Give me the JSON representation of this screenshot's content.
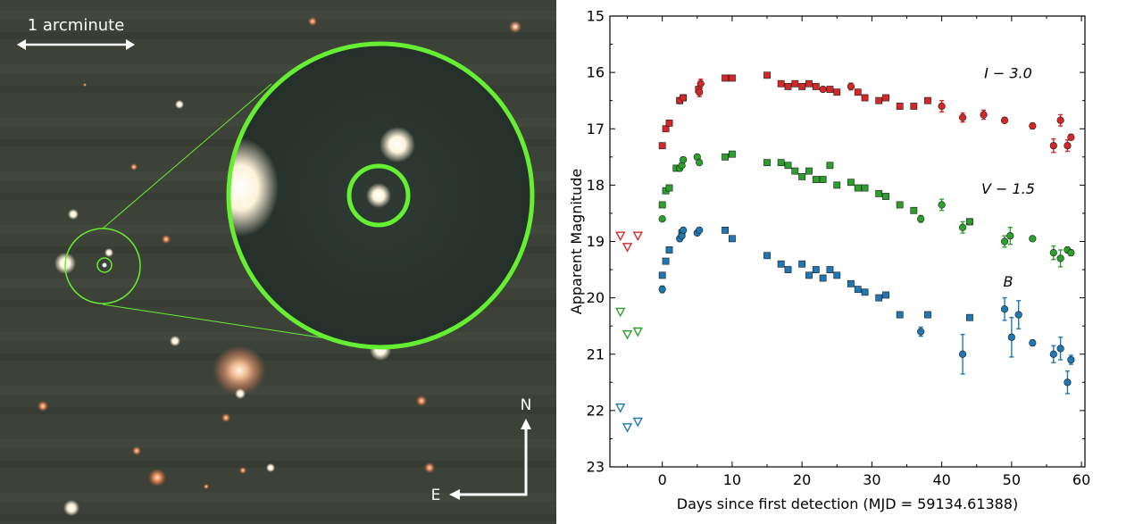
{
  "image": {
    "scale_label": "1 arcminute",
    "compass_north": "N",
    "compass_east": "E",
    "bg_color": "#3c4137",
    "marker_color": "#66ee33"
  },
  "chart_data": {
    "type": "scatter",
    "xlabel": "Days since first detection (MJD = 59134.61388)",
    "ylabel": "Apparent Magnitude",
    "xlim": [
      -7.5,
      60.5
    ],
    "ylim": [
      23,
      15
    ],
    "y_inverted": true,
    "xticks": [
      0,
      10,
      20,
      30,
      40,
      50,
      60
    ],
    "yticks": [
      15,
      16,
      17,
      18,
      19,
      20,
      21,
      22,
      23
    ],
    "marker_note": "squares and circles = detections (two instruments), open downward triangles = upper limits",
    "series": [
      {
        "name": "I − 3.0",
        "color": "#d62728",
        "upper_limits": [
          {
            "x": -6.0,
            "y": 18.9
          },
          {
            "x": -5.0,
            "y": 19.1
          },
          {
            "x": -3.5,
            "y": 18.9
          }
        ],
        "squares": [
          {
            "x": 0.0,
            "y": 17.3
          },
          {
            "x": 0.5,
            "y": 17.0
          },
          {
            "x": 1.0,
            "y": 16.9
          },
          {
            "x": 2.5,
            "y": 16.5
          },
          {
            "x": 3.0,
            "y": 16.45
          },
          {
            "x": 5.2,
            "y": 16.3
          },
          {
            "x": 9.0,
            "y": 16.1
          },
          {
            "x": 10.0,
            "y": 16.1
          },
          {
            "x": 15.0,
            "y": 16.05
          },
          {
            "x": 17.0,
            "y": 16.2
          },
          {
            "x": 18.0,
            "y": 16.25
          },
          {
            "x": 19.0,
            "y": 16.2
          },
          {
            "x": 20.0,
            "y": 16.25
          },
          {
            "x": 21.0,
            "y": 16.2
          },
          {
            "x": 22.0,
            "y": 16.25
          },
          {
            "x": 24.0,
            "y": 16.3
          },
          {
            "x": 25.0,
            "y": 16.35
          },
          {
            "x": 28.0,
            "y": 16.35
          },
          {
            "x": 29.0,
            "y": 16.45
          },
          {
            "x": 31.0,
            "y": 16.5
          },
          {
            "x": 32.0,
            "y": 16.45
          },
          {
            "x": 34.0,
            "y": 16.6
          },
          {
            "x": 36.0,
            "y": 16.6
          },
          {
            "x": 38.0,
            "y": 16.5
          }
        ],
        "circles": [
          {
            "x": 2.5,
            "y": 16.5,
            "err": 0.0
          },
          {
            "x": 3.0,
            "y": 16.45,
            "err": 0.0
          },
          {
            "x": 5.3,
            "y": 16.35,
            "err": 0.08
          },
          {
            "x": 5.5,
            "y": 16.2,
            "err": 0.08
          },
          {
            "x": 23.0,
            "y": 16.3,
            "err": 0.0
          },
          {
            "x": 27.0,
            "y": 16.25,
            "err": 0.06
          },
          {
            "x": 40.0,
            "y": 16.6,
            "err": 0.1
          },
          {
            "x": 43.0,
            "y": 16.8,
            "err": 0.08
          },
          {
            "x": 46.0,
            "y": 16.75,
            "err": 0.08
          },
          {
            "x": 49.0,
            "y": 16.85,
            "err": 0.05
          },
          {
            "x": 53.0,
            "y": 16.95,
            "err": 0.05
          },
          {
            "x": 56.0,
            "y": 17.3,
            "err": 0.12
          },
          {
            "x": 57.0,
            "y": 16.85,
            "err": 0.1
          },
          {
            "x": 58.0,
            "y": 17.3,
            "err": 0.1
          },
          {
            "x": 58.5,
            "y": 17.15,
            "err": 0.05
          }
        ]
      },
      {
        "name": "V − 1.5",
        "color": "#2ca02c",
        "upper_limits": [
          {
            "x": -6.0,
            "y": 20.25
          },
          {
            "x": -5.0,
            "y": 20.65
          },
          {
            "x": -3.5,
            "y": 20.6
          }
        ],
        "squares": [
          {
            "x": 0.0,
            "y": 18.35
          },
          {
            "x": 0.5,
            "y": 18.1
          },
          {
            "x": 1.0,
            "y": 18.05
          },
          {
            "x": 2.0,
            "y": 17.7
          },
          {
            "x": 9.0,
            "y": 17.5
          },
          {
            "x": 10.0,
            "y": 17.45
          },
          {
            "x": 15.0,
            "y": 17.6
          },
          {
            "x": 17.0,
            "y": 17.6
          },
          {
            "x": 18.0,
            "y": 17.65
          },
          {
            "x": 19.0,
            "y": 17.75
          },
          {
            "x": 20.0,
            "y": 17.85
          },
          {
            "x": 21.0,
            "y": 17.75
          },
          {
            "x": 22.0,
            "y": 17.9
          },
          {
            "x": 23.0,
            "y": 17.9
          },
          {
            "x": 24.0,
            "y": 17.65
          },
          {
            "x": 25.0,
            "y": 18.0
          },
          {
            "x": 27.0,
            "y": 17.95
          },
          {
            "x": 28.0,
            "y": 18.05
          },
          {
            "x": 29.0,
            "y": 18.05
          },
          {
            "x": 31.0,
            "y": 18.15
          },
          {
            "x": 32.0,
            "y": 18.2
          },
          {
            "x": 34.0,
            "y": 18.35
          },
          {
            "x": 36.0,
            "y": 18.45
          },
          {
            "x": 44.0,
            "y": 18.65
          }
        ],
        "circles": [
          {
            "x": 0.0,
            "y": 18.6,
            "err": 0.03
          },
          {
            "x": 2.5,
            "y": 17.7,
            "err": 0.05
          },
          {
            "x": 2.8,
            "y": 17.65,
            "err": 0.0
          },
          {
            "x": 3.0,
            "y": 17.55,
            "err": 0.0
          },
          {
            "x": 5.0,
            "y": 17.5,
            "err": 0.0
          },
          {
            "x": 5.3,
            "y": 17.6,
            "err": 0.0
          },
          {
            "x": 37.0,
            "y": 18.6,
            "err": 0.06
          },
          {
            "x": 40.0,
            "y": 18.35,
            "err": 0.1
          },
          {
            "x": 43.0,
            "y": 18.75,
            "err": 0.1
          },
          {
            "x": 44.0,
            "y": 18.65,
            "err": 0.0
          },
          {
            "x": 49.0,
            "y": 19.0,
            "err": 0.1
          },
          {
            "x": 49.8,
            "y": 18.9,
            "err": 0.15
          },
          {
            "x": 53.0,
            "y": 18.95,
            "err": 0.0
          },
          {
            "x": 56.0,
            "y": 19.2,
            "err": 0.12
          },
          {
            "x": 57.0,
            "y": 19.3,
            "err": 0.15
          },
          {
            "x": 58.0,
            "y": 19.15,
            "err": 0.05
          },
          {
            "x": 58.5,
            "y": 19.2,
            "err": 0.05
          }
        ]
      },
      {
        "name": "B",
        "color": "#1f77b4",
        "upper_limits": [
          {
            "x": -6.0,
            "y": 21.95
          },
          {
            "x": -5.0,
            "y": 22.3
          },
          {
            "x": -3.5,
            "y": 22.2
          }
        ],
        "squares": [
          {
            "x": 0.0,
            "y": 19.6
          },
          {
            "x": 0.5,
            "y": 19.35
          },
          {
            "x": 1.0,
            "y": 19.15
          },
          {
            "x": 2.8,
            "y": 18.85
          },
          {
            "x": 9.0,
            "y": 18.8
          },
          {
            "x": 10.0,
            "y": 18.95
          },
          {
            "x": 15.0,
            "y": 19.25
          },
          {
            "x": 17.0,
            "y": 19.4
          },
          {
            "x": 18.0,
            "y": 19.5
          },
          {
            "x": 20.0,
            "y": 19.4
          },
          {
            "x": 21.0,
            "y": 19.6
          },
          {
            "x": 22.0,
            "y": 19.5
          },
          {
            "x": 23.0,
            "y": 19.65
          },
          {
            "x": 24.0,
            "y": 19.5
          },
          {
            "x": 25.0,
            "y": 19.6
          },
          {
            "x": 27.0,
            "y": 19.75
          },
          {
            "x": 28.0,
            "y": 19.85
          },
          {
            "x": 29.0,
            "y": 19.9
          },
          {
            "x": 31.0,
            "y": 20.0
          },
          {
            "x": 32.0,
            "y": 19.95
          },
          {
            "x": 34.0,
            "y": 20.3
          },
          {
            "x": 38.0,
            "y": 20.3
          },
          {
            "x": 44.0,
            "y": 20.35
          }
        ],
        "circles": [
          {
            "x": 0.0,
            "y": 19.85,
            "err": 0.06
          },
          {
            "x": 2.5,
            "y": 18.95,
            "err": 0.05
          },
          {
            "x": 2.8,
            "y": 18.9,
            "err": 0.0
          },
          {
            "x": 3.0,
            "y": 18.8,
            "err": 0.0
          },
          {
            "x": 5.0,
            "y": 18.85,
            "err": 0.0
          },
          {
            "x": 5.3,
            "y": 18.8,
            "err": 0.0
          },
          {
            "x": 37.0,
            "y": 20.6,
            "err": 0.08
          },
          {
            "x": 43.0,
            "y": 21.0,
            "err": 0.35
          },
          {
            "x": 49.0,
            "y": 20.2,
            "err": 0.2
          },
          {
            "x": 50.0,
            "y": 20.7,
            "err": 0.35
          },
          {
            "x": 51.0,
            "y": 20.3,
            "err": 0.25
          },
          {
            "x": 53.0,
            "y": 20.8,
            "err": 0.05
          },
          {
            "x": 56.0,
            "y": 21.0,
            "err": 0.15
          },
          {
            "x": 57.0,
            "y": 20.9,
            "err": 0.2
          },
          {
            "x": 58.0,
            "y": 21.5,
            "err": 0.2
          },
          {
            "x": 58.5,
            "y": 21.1,
            "err": 0.08
          }
        ]
      }
    ]
  }
}
